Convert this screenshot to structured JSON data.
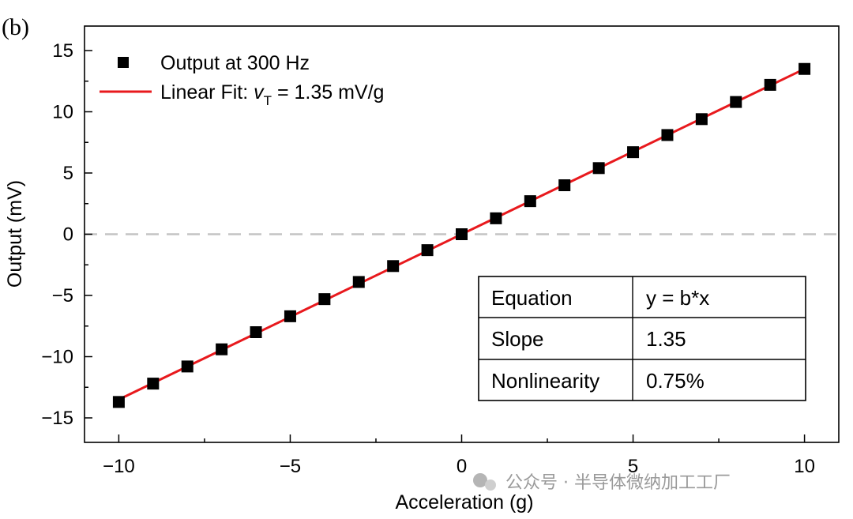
{
  "panel_label": "(b)",
  "watermark": "公众号 · 半导体微纳加工工厂",
  "colors": {
    "fit": "#e8191d",
    "marker": "#000000",
    "zero_line": "#c4c4c4"
  },
  "chart_data": {
    "type": "scatter",
    "title": "",
    "xlabel": "Acceleration (g)",
    "ylabel": "Output (mV)",
    "xlim": [
      -11,
      11
    ],
    "ylim": [
      -17,
      17
    ],
    "xticks": [
      -10,
      -5,
      0,
      5,
      10
    ],
    "yticks": [
      -15,
      -10,
      -5,
      0,
      5,
      10,
      15
    ],
    "xtick_labels": [
      "−10",
      "−5",
      "0",
      "5",
      "10"
    ],
    "ytick_labels": [
      "−15",
      "−10",
      "−5",
      "0",
      "5",
      "10",
      "15"
    ],
    "reference_line": {
      "y": 0,
      "style": "dashed"
    },
    "series": [
      {
        "name": "Output at 300 Hz",
        "kind": "markers",
        "x": [
          -10,
          -9,
          -8,
          -7,
          -6,
          -5,
          -4,
          -3,
          -2,
          -1,
          0,
          1,
          2,
          3,
          4,
          5,
          6,
          7,
          8,
          9,
          10
        ],
        "y": [
          -13.7,
          -12.2,
          -10.8,
          -9.4,
          -8.0,
          -6.7,
          -5.3,
          -3.9,
          -2.6,
          -1.3,
          0.0,
          1.3,
          2.7,
          4.0,
          5.4,
          6.7,
          8.1,
          9.4,
          10.8,
          12.2,
          13.5
        ]
      },
      {
        "name": "Linear Fit: ",
        "name_symbol": "v",
        "name_subscript": "T",
        "name_suffix": " = 1.35 mV/g",
        "kind": "line",
        "slope": 1.35,
        "x": [
          -10,
          10
        ]
      }
    ],
    "legend_position": "top-left",
    "fit_table": {
      "rows": [
        [
          "Equation",
          "y = b*x"
        ],
        [
          "Slope",
          "1.35"
        ],
        [
          "Nonlinearity",
          "0.75%"
        ]
      ]
    }
  }
}
